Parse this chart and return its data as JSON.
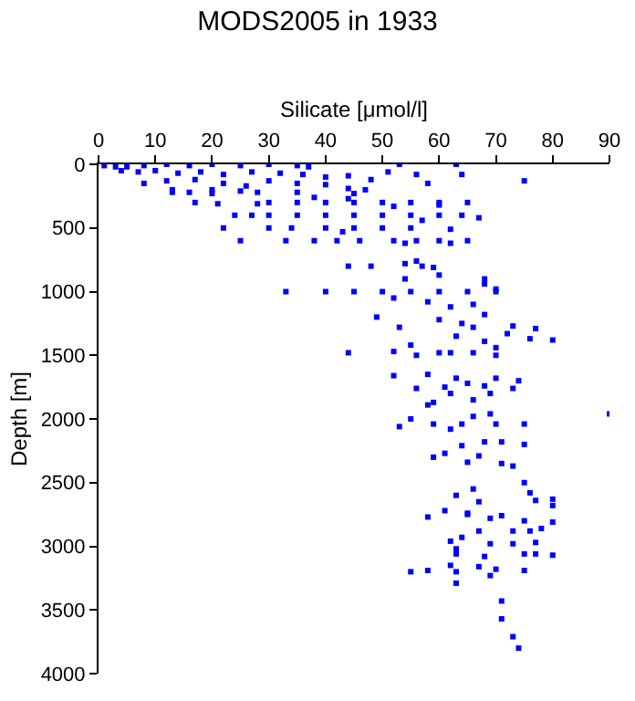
{
  "chart_data": {
    "type": "scatter",
    "title": "MODS2005 in 1933",
    "xlabel": "Silicate [μmol/l]",
    "ylabel": "Depth [m]",
    "xlim": [
      0,
      90
    ],
    "xticks": [
      0,
      10,
      20,
      30,
      40,
      50,
      60,
      70,
      80,
      90
    ],
    "ylim": [
      4000,
      0
    ],
    "yticks": [
      0,
      500,
      1000,
      1500,
      2000,
      2500,
      3000,
      3500,
      4000
    ],
    "marker": "square",
    "series": [
      {
        "color": "#0000ff",
        "x": [
          1,
          3,
          5,
          8,
          12,
          16,
          20,
          25,
          30,
          35,
          37,
          53,
          63,
          4,
          7,
          10,
          14,
          18,
          22,
          27,
          32,
          36,
          40,
          44,
          48,
          51,
          56,
          75,
          58,
          64,
          8,
          12,
          17,
          22,
          26,
          30,
          35,
          40,
          44,
          47,
          13,
          20,
          25,
          13,
          16,
          20,
          28,
          35,
          45,
          38,
          44,
          17,
          21,
          28,
          30,
          35,
          40,
          45,
          50,
          55,
          60,
          65,
          60,
          52,
          24,
          27,
          30,
          35,
          40,
          45,
          50,
          55,
          60,
          64,
          67,
          57,
          22,
          30,
          34,
          40,
          45,
          50,
          55,
          62,
          43,
          25,
          33,
          38,
          42,
          46,
          52,
          56,
          60,
          65,
          54,
          62,
          44,
          48,
          54,
          56,
          57,
          59,
          60,
          68,
          54,
          68,
          33,
          40,
          45,
          50,
          55,
          60,
          65,
          70,
          70,
          52,
          58,
          62,
          66,
          68,
          49,
          53,
          60,
          64,
          66,
          73,
          77,
          63,
          68,
          72,
          76,
          80,
          70,
          55,
          44,
          52,
          56,
          60,
          62,
          66,
          70,
          52,
          58,
          63,
          70,
          74,
          56,
          61,
          65,
          68,
          73,
          62,
          69,
          59,
          66,
          90,
          58,
          53,
          55,
          59,
          64,
          70,
          75,
          62,
          66,
          69,
          59,
          61,
          64,
          67,
          68,
          71,
          75,
          65,
          71,
          73,
          75,
          66,
          76,
          63,
          67,
          77,
          80,
          80,
          61,
          65,
          58,
          65,
          69,
          71,
          75,
          80,
          67,
          73,
          76,
          78,
          64,
          62,
          69,
          73,
          77,
          63,
          63,
          68,
          75,
          77,
          80,
          55,
          58,
          62,
          63,
          67,
          70,
          75,
          63,
          69,
          71,
          71,
          73,
          74
        ],
        "values": [
          10,
          20,
          20,
          10,
          0,
          10,
          0,
          10,
          0,
          10,
          20,
          0,
          0,
          50,
          60,
          50,
          70,
          60,
          80,
          60,
          70,
          80,
          100,
          90,
          120,
          60,
          80,
          130,
          150,
          80,
          150,
          130,
          120,
          150,
          170,
          130,
          150,
          160,
          190,
          200,
          200,
          200,
          210,
          220,
          220,
          230,
          220,
          220,
          230,
          260,
          270,
          300,
          310,
          310,
          300,
          300,
          300,
          300,
          300,
          300,
          300,
          300,
          320,
          330,
          400,
          400,
          400,
          400,
          400,
          400,
          400,
          400,
          400,
          400,
          420,
          440,
          500,
          500,
          500,
          500,
          500,
          500,
          500,
          510,
          530,
          600,
          600,
          600,
          600,
          600,
          600,
          600,
          600,
          600,
          620,
          620,
          800,
          800,
          780,
          760,
          800,
          810,
          870,
          900,
          900,
          940,
          1000,
          1000,
          1000,
          1000,
          1000,
          1000,
          1000,
          1000,
          980,
          1050,
          1080,
          1120,
          1100,
          1180,
          1200,
          1280,
          1220,
          1250,
          1280,
          1270,
          1290,
          1350,
          1390,
          1330,
          1370,
          1380,
          1440,
          1420,
          1480,
          1470,
          1500,
          1480,
          1480,
          1480,
          1500,
          1660,
          1650,
          1680,
          1680,
          1700,
          1760,
          1750,
          1720,
          1740,
          1760,
          1800,
          1800,
          1870,
          1850,
          1960,
          1890,
          2060,
          2000,
          2040,
          2040,
          2040,
          2040,
          2080,
          1980,
          1960,
          2300,
          2270,
          2210,
          2290,
          2180,
          2180,
          2200,
          2340,
          2350,
          2370,
          2500,
          2550,
          2580,
          2600,
          2650,
          2640,
          2630,
          2680,
          2720,
          2740,
          2770,
          2750,
          2780,
          2760,
          2800,
          2810,
          2880,
          2880,
          2880,
          2860,
          2930,
          2960,
          2980,
          2980,
          2970,
          3020,
          3060,
          3080,
          3060,
          3060,
          3070,
          3200,
          3190,
          3150,
          3200,
          3160,
          3180,
          3190,
          3290,
          3230,
          3430,
          3570,
          3710,
          3800
        ]
      }
    ]
  }
}
